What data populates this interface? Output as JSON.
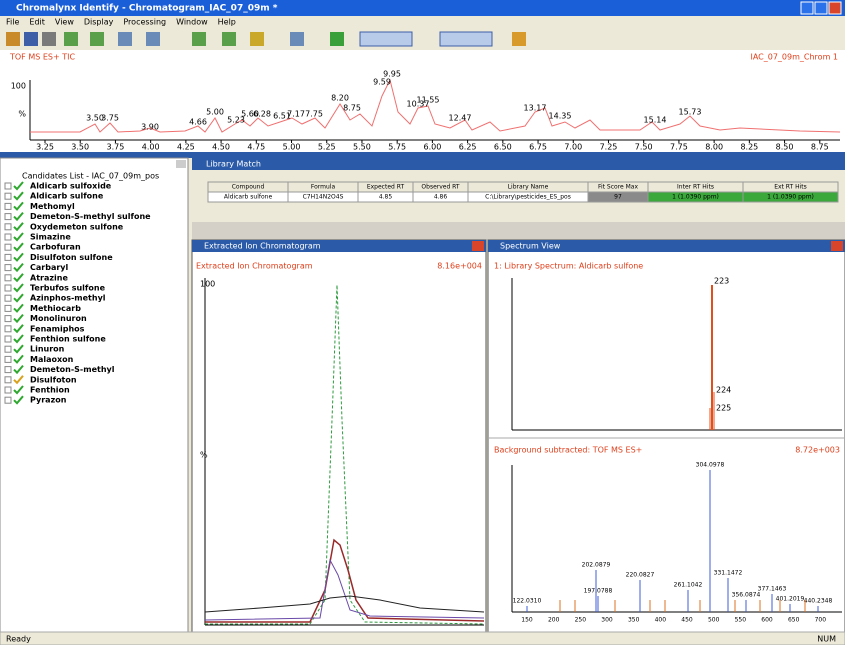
{
  "window": {
    "title": "Chromalynx Identify - Chromatogram_IAC_07_09m *"
  },
  "menu": [
    "File",
    "Edit",
    "View",
    "Display",
    "Processing",
    "Window",
    "Help"
  ],
  "tic": {
    "label": "TOF MS ES+ TIC",
    "right_label": "IAC_07_09m_Chrom 1",
    "y_labels": [
      "100",
      "%"
    ],
    "peaks": [
      "3.50",
      "3.75",
      "3.90",
      "4.66",
      "5.00",
      "5.23",
      "5.60",
      "6.28",
      "6.51",
      "7.17",
      "7.75",
      "8.20",
      "8.75",
      "9.59",
      "9.95",
      "10.37",
      "11.55",
      "12.47",
      "13.17",
      "14.35",
      "15.14",
      "15.73"
    ],
    "x_ticks": [
      "3.25",
      "3.50",
      "3.75",
      "4.00",
      "4.25",
      "4.50",
      "4.75",
      "5.00",
      "5.25",
      "5.50",
      "5.75",
      "6.00",
      "6.25",
      "6.50",
      "6.75",
      "7.00",
      "7.25",
      "7.50",
      "7.75",
      "8.00",
      "8.25",
      "8.50",
      "8.75"
    ]
  },
  "tree": {
    "root": "Candidates List - IAC_07_09m_pos",
    "items": [
      {
        "name": "Aldicarb sulfoxide",
        "check_color": "#2ea82e"
      },
      {
        "name": "Aldicarb sulfone",
        "check_color": "#2ea82e"
      },
      {
        "name": "Methomyl",
        "check_color": "#2ea82e"
      },
      {
        "name": "Demeton-S-methyl sulfone",
        "check_color": "#2ea82e"
      },
      {
        "name": "Oxydemeton sulfone",
        "check_color": "#2ea82e"
      },
      {
        "name": "Simazine",
        "check_color": "#2ea82e"
      },
      {
        "name": "Carbofuran",
        "check_color": "#2ea82e"
      },
      {
        "name": "Disulfoton sulfone",
        "check_color": "#2ea82e"
      },
      {
        "name": "Carbaryl",
        "check_color": "#2ea82e"
      },
      {
        "name": "Atrazine",
        "check_color": "#2ea82e"
      },
      {
        "name": "Terbufos sulfone",
        "check_color": "#2ea82e"
      },
      {
        "name": "Azinphos-methyl",
        "check_color": "#2ea82e"
      },
      {
        "name": "Methiocarb",
        "check_color": "#2ea82e"
      },
      {
        "name": "Monolinuron",
        "check_color": "#2ea82e"
      },
      {
        "name": "Fenamiphos",
        "check_color": "#2ea82e"
      },
      {
        "name": "Fenthion sulfone",
        "check_color": "#2ea82e"
      },
      {
        "name": "Linuron",
        "check_color": "#2ea82e"
      },
      {
        "name": "Malaoxon",
        "check_color": "#2ea82e"
      },
      {
        "name": "Demeton-S-methyl",
        "check_color": "#2ea82e"
      },
      {
        "name": "Disulfoton",
        "check_color": "#d8a21c"
      },
      {
        "name": "Fenthion",
        "check_color": "#2ea82e"
      },
      {
        "name": "Pyrazon",
        "check_color": "#2ea82e"
      }
    ]
  },
  "library": {
    "title": "Library Match",
    "columns": [
      "Compound",
      "Formula",
      "Expected RT",
      "Observed RT",
      "Library Name",
      "Fit Score Max",
      "Inter RT Hits",
      "Ext RT Hits"
    ],
    "row": [
      "Aldicarb sulfone",
      "C7H14N2O4S",
      "4.85",
      "4.86",
      "C:\\Library\\pesticides_ES_pos",
      "97",
      "1 (1.0390 ppm)",
      "1 (1.0390 ppm)"
    ]
  },
  "chromatogram": {
    "title": "Extracted Ion Chromatogram",
    "label": "Extracted Ion Chromatogram",
    "right_label": "8.16e+004",
    "y_labels": [
      "100",
      "%"
    ]
  },
  "spectrum": {
    "title": "Spectrum View",
    "top_label": "1: Library Spectrum: Aldicarb sulfone",
    "bottom_label": "Background subtracted: TOF MS ES+",
    "bottom_right_label": "8.72e+003",
    "top_peaks": [
      "223",
      "224",
      "225"
    ],
    "bottom_peaks": [
      "304.0978",
      "202.0879",
      "220.0827",
      "261.1042",
      "197.0788",
      "122.0310",
      "331.1472",
      "377.1463",
      "356.0874",
      "401.2019",
      "440.2348"
    ],
    "x_ticks": [
      "150",
      "200",
      "250",
      "300",
      "350",
      "400",
      "450",
      "500",
      "550",
      "600",
      "650",
      "700"
    ]
  },
  "status": {
    "left": "Ready",
    "right": "NUM"
  }
}
